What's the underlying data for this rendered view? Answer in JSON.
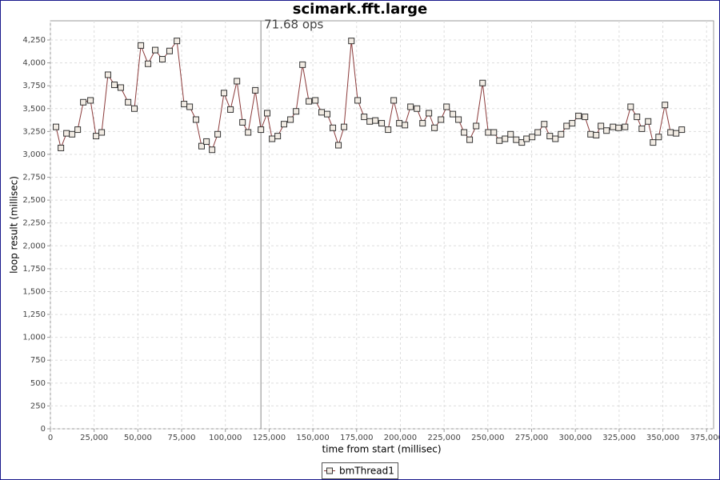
{
  "chart_data": {
    "type": "line",
    "title": "scimark.fft.large",
    "x_label": "time from start (millisec)",
    "y_label": "loop result (millisec)",
    "x": [
      3200,
      6000,
      9200,
      12400,
      15600,
      18800,
      22900,
      26100,
      29300,
      32900,
      36600,
      40200,
      44400,
      48000,
      51700,
      55800,
      59900,
      64000,
      68100,
      72300,
      76400,
      79600,
      83200,
      86400,
      89200,
      92400,
      95600,
      99200,
      102900,
      106600,
      109800,
      113000,
      117100,
      120300,
      123900,
      126700,
      129900,
      133500,
      137200,
      140400,
      144100,
      147700,
      151400,
      155000,
      158200,
      161400,
      164600,
      167800,
      172000,
      175600,
      179300,
      182500,
      185700,
      189300,
      193000,
      196200,
      199400,
      202600,
      205800,
      209500,
      212700,
      216300,
      219500,
      223200,
      226400,
      230000,
      233200,
      236400,
      239600,
      243300,
      247000,
      250200,
      253400,
      256600,
      259800,
      263000,
      266200,
      269400,
      272100,
      275300,
      278500,
      282200,
      285400,
      288600,
      291800,
      295000,
      298200,
      301800,
      305500,
      308700,
      311900,
      314600,
      317800,
      321500,
      324700,
      328400,
      331600,
      335200,
      338000,
      341600,
      344400,
      347600,
      351200,
      354400,
      357600,
      360800
    ],
    "series": [
      {
        "name": "bmThread1",
        "color": "#8b3a3a",
        "values": [
          3300,
          3070,
          3230,
          3220,
          3270,
          3570,
          3590,
          3200,
          3240,
          3870,
          3760,
          3730,
          3570,
          3500,
          4190,
          3990,
          4140,
          4040,
          4130,
          4240,
          3550,
          3520,
          3380,
          3090,
          3140,
          3050,
          3220,
          3670,
          3490,
          3800,
          3350,
          3240,
          3700,
          3270,
          3450,
          3170,
          3200,
          3330,
          3380,
          3470,
          3980,
          3580,
          3590,
          3460,
          3440,
          3290,
          3100,
          3300,
          4240,
          3590,
          3410,
          3360,
          3370,
          3340,
          3270,
          3590,
          3340,
          3320,
          3520,
          3500,
          3340,
          3450,
          3290,
          3380,
          3520,
          3440,
          3380,
          3240,
          3160,
          3310,
          3780,
          3240,
          3240,
          3150,
          3170,
          3220,
          3160,
          3130,
          3170,
          3190,
          3240,
          3330,
          3200,
          3170,
          3220,
          3310,
          3340,
          3420,
          3410,
          3220,
          3210,
          3310,
          3260,
          3300,
          3290,
          3300,
          3520,
          3410,
          3280,
          3360,
          3130,
          3190,
          3540,
          3240,
          3230,
          3270
        ]
      }
    ],
    "xlim": [
      0,
      379000
    ],
    "ylim": [
      0,
      4460
    ],
    "xticks": [
      0,
      {
        "value": 25000,
        "label": "25,000"
      },
      {
        "value": 50000,
        "label": "50,000"
      },
      {
        "value": 75000,
        "label": "75,000"
      },
      {
        "value": 100000,
        "label": "100,000"
      },
      {
        "value": 125000,
        "label": "125,000"
      },
      {
        "value": 150000,
        "label": "150,000"
      },
      {
        "value": 175000,
        "label": "175,000"
      },
      {
        "value": 200000,
        "label": "200,000"
      },
      {
        "value": 225000,
        "label": "225,000"
      },
      {
        "value": 250000,
        "label": "250,000"
      },
      {
        "value": 275000,
        "label": "275,000"
      },
      {
        "value": 300000,
        "label": "300,000"
      },
      {
        "value": 325000,
        "label": "325,000"
      },
      {
        "value": 350000,
        "label": "350,000"
      },
      {
        "value": 375000,
        "label": "375,000"
      }
    ],
    "yticks": [
      0,
      250,
      500,
      750,
      {
        "value": 1000,
        "label": "1,000"
      },
      {
        "value": 1250,
        "label": "1,250"
      },
      {
        "value": 1500,
        "label": "1,500"
      },
      {
        "value": 1750,
        "label": "1,750"
      },
      {
        "value": 2000,
        "label": "2,000"
      },
      {
        "value": 2250,
        "label": "2,250"
      },
      {
        "value": 2500,
        "label": "2,500"
      },
      {
        "value": 2750,
        "label": "2,750"
      },
      {
        "value": 3000,
        "label": "3,000"
      },
      {
        "value": 3250,
        "label": "3,250"
      },
      {
        "value": 3500,
        "label": "3,500"
      },
      {
        "value": 3750,
        "label": "3,750"
      },
      {
        "value": 4000,
        "label": "4,000"
      },
      {
        "value": 4250,
        "label": "4,250"
      }
    ],
    "marker": {
      "value": 120300,
      "label": "71.68 ops"
    },
    "grid": true
  }
}
